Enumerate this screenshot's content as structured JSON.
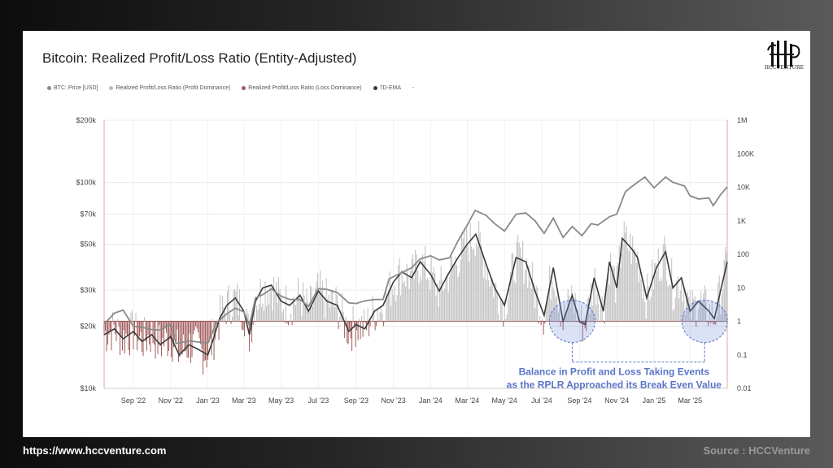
{
  "footer": {
    "url": "https://www.hccventure.com",
    "source": "Source : HCCVenture"
  },
  "brand": {
    "logo_text": "HCCVENTURE"
  },
  "colors": {
    "price": "#8a8a8a",
    "profit": "#bdbdbd",
    "loss": "#a05a5a",
    "ema": "#3a3a3a",
    "annotation": "#5a74c8"
  },
  "chart_data": {
    "type": "line",
    "title": "Bitcoin: Realized Profit/Loss Ratio (Entity-Adjusted)",
    "legend": [
      {
        "label": "BTC: Price [USD]",
        "color": "#8a8a8a"
      },
      {
        "label": "Realized Profit/Loss Ratio (Profit Dominance)",
        "color": "#bdbdbd"
      },
      {
        "label": "Realized Profit/Loss Ratio (Loss Dominance)",
        "color": "#a05a5a"
      },
      {
        "label": "7D-EMA",
        "color": "#3a3a3a"
      },
      {
        "label": "-",
        "color": ""
      }
    ],
    "left_axis": {
      "scale": "log",
      "range": [
        10000,
        200000
      ],
      "ticks": [
        {
          "v": 200000,
          "label": "$200k"
        },
        {
          "v": 100000,
          "label": "$100k"
        },
        {
          "v": 70000,
          "label": "$70k"
        },
        {
          "v": 50000,
          "label": "$50k"
        },
        {
          "v": 30000,
          "label": "$30k"
        },
        {
          "v": 20000,
          "label": "$20k"
        },
        {
          "v": 10000,
          "label": "$10k"
        }
      ]
    },
    "right_axis": {
      "scale": "log",
      "range": [
        0.01,
        1000000
      ],
      "ticks": [
        {
          "v": 1000000,
          "label": "1M"
        },
        {
          "v": 100000,
          "label": "100K"
        },
        {
          "v": 10000,
          "label": "10K"
        },
        {
          "v": 1000,
          "label": "1K"
        },
        {
          "v": 100,
          "label": "100"
        },
        {
          "v": 10,
          "label": "10"
        },
        {
          "v": 1,
          "label": "1"
        },
        {
          "v": 0.1,
          "label": "0.1"
        },
        {
          "v": 0.01,
          "label": "0.01"
        }
      ]
    },
    "x_axis": {
      "range": [
        "2022-07-15",
        "2025-05-01"
      ],
      "ticks": [
        {
          "date": "2022-09-01",
          "label": "Sep '22"
        },
        {
          "date": "2022-11-01",
          "label": "Nov '22"
        },
        {
          "date": "2023-01-01",
          "label": "Jan '23"
        },
        {
          "date": "2023-03-01",
          "label": "Mar '23"
        },
        {
          "date": "2023-05-01",
          "label": "May '23"
        },
        {
          "date": "2023-07-01",
          "label": "Jul '23"
        },
        {
          "date": "2023-09-01",
          "label": "Sep '23"
        },
        {
          "date": "2023-11-01",
          "label": "Nov '23"
        },
        {
          "date": "2024-01-01",
          "label": "Jan '24"
        },
        {
          "date": "2024-03-01",
          "label": "Mar '24"
        },
        {
          "date": "2024-05-01",
          "label": "May '24"
        },
        {
          "date": "2024-07-01",
          "label": "Jul '24"
        },
        {
          "date": "2024-09-01",
          "label": "Sep '24"
        },
        {
          "date": "2024-11-01",
          "label": "Nov '24"
        },
        {
          "date": "2025-01-01",
          "label": "Jan '25"
        },
        {
          "date": "2025-03-01",
          "label": "Mar '25"
        }
      ]
    },
    "break_even_value": 1,
    "grid": true,
    "series": [
      {
        "name": "BTC: Price [USD]",
        "axis": "left",
        "points": [
          [
            "2022-07-15",
            20500
          ],
          [
            "2022-08-01",
            23200
          ],
          [
            "2022-08-15",
            24000
          ],
          [
            "2022-09-01",
            20000
          ],
          [
            "2022-09-15",
            19800
          ],
          [
            "2022-10-01",
            19300
          ],
          [
            "2022-10-15",
            19200
          ],
          [
            "2022-11-01",
            20500
          ],
          [
            "2022-11-10",
            16500
          ],
          [
            "2022-12-01",
            17000
          ],
          [
            "2022-12-15",
            16800
          ],
          [
            "2023-01-01",
            16600
          ],
          [
            "2023-01-15",
            20800
          ],
          [
            "2023-02-01",
            23000
          ],
          [
            "2023-02-15",
            24500
          ],
          [
            "2023-03-01",
            23500
          ],
          [
            "2023-03-10",
            20200
          ],
          [
            "2023-03-20",
            27500
          ],
          [
            "2023-04-01",
            28500
          ],
          [
            "2023-04-15",
            30400
          ],
          [
            "2023-05-01",
            28000
          ],
          [
            "2023-05-15",
            27000
          ],
          [
            "2023-06-01",
            27000
          ],
          [
            "2023-06-15",
            25000
          ],
          [
            "2023-07-01",
            30500
          ],
          [
            "2023-07-15",
            30200
          ],
          [
            "2023-08-01",
            29200
          ],
          [
            "2023-08-20",
            26000
          ],
          [
            "2023-09-01",
            25800
          ],
          [
            "2023-09-15",
            26600
          ],
          [
            "2023-10-01",
            27000
          ],
          [
            "2023-10-15",
            27000
          ],
          [
            "2023-10-25",
            34000
          ],
          [
            "2023-11-15",
            36500
          ],
          [
            "2023-12-01",
            38500
          ],
          [
            "2023-12-15",
            42500
          ],
          [
            "2024-01-01",
            44000
          ],
          [
            "2024-01-15",
            42000
          ],
          [
            "2024-02-01",
            43000
          ],
          [
            "2024-02-15",
            52000
          ],
          [
            "2024-03-01",
            62000
          ],
          [
            "2024-03-14",
            73000
          ],
          [
            "2024-04-01",
            69000
          ],
          [
            "2024-04-15",
            63000
          ],
          [
            "2024-05-01",
            58000
          ],
          [
            "2024-05-20",
            70000
          ],
          [
            "2024-06-05",
            71000
          ],
          [
            "2024-06-20",
            65000
          ],
          [
            "2024-07-05",
            56500
          ],
          [
            "2024-07-20",
            67000
          ],
          [
            "2024-08-05",
            54000
          ],
          [
            "2024-08-20",
            61000
          ],
          [
            "2024-09-05",
            55000
          ],
          [
            "2024-09-20",
            63000
          ],
          [
            "2024-10-01",
            62000
          ],
          [
            "2024-10-20",
            68000
          ],
          [
            "2024-11-01",
            70000
          ],
          [
            "2024-11-15",
            90000
          ],
          [
            "2024-11-25",
            95000
          ],
          [
            "2024-12-05",
            100000
          ],
          [
            "2024-12-17",
            106000
          ],
          [
            "2025-01-01",
            94000
          ],
          [
            "2025-01-20",
            106000
          ],
          [
            "2025-02-01",
            100000
          ],
          [
            "2025-02-20",
            96000
          ],
          [
            "2025-03-01",
            86000
          ],
          [
            "2025-03-15",
            83000
          ],
          [
            "2025-04-01",
            84000
          ],
          [
            "2025-04-08",
            77000
          ],
          [
            "2025-04-20",
            87000
          ],
          [
            "2025-05-01",
            95000
          ]
        ]
      },
      {
        "name": "7D-EMA",
        "axis": "right",
        "points": [
          [
            "2022-07-15",
            0.4
          ],
          [
            "2022-08-01",
            0.6
          ],
          [
            "2022-08-15",
            0.3
          ],
          [
            "2022-09-01",
            0.5
          ],
          [
            "2022-09-15",
            0.25
          ],
          [
            "2022-10-01",
            0.4
          ],
          [
            "2022-10-15",
            0.2
          ],
          [
            "2022-11-01",
            0.35
          ],
          [
            "2022-11-15",
            0.1
          ],
          [
            "2022-12-01",
            0.2
          ],
          [
            "2022-12-15",
            0.15
          ],
          [
            "2023-01-01",
            0.1
          ],
          [
            "2023-01-10",
            0.3
          ],
          [
            "2023-01-20",
            1.2
          ],
          [
            "2023-02-01",
            3.0
          ],
          [
            "2023-02-15",
            5.0
          ],
          [
            "2023-03-01",
            2.0
          ],
          [
            "2023-03-10",
            0.4
          ],
          [
            "2023-03-20",
            4.0
          ],
          [
            "2023-04-01",
            10.0
          ],
          [
            "2023-04-15",
            12.0
          ],
          [
            "2023-05-01",
            4.0
          ],
          [
            "2023-05-15",
            3.0
          ],
          [
            "2023-06-01",
            6.0
          ],
          [
            "2023-06-15",
            2.0
          ],
          [
            "2023-07-01",
            8.0
          ],
          [
            "2023-07-15",
            4.0
          ],
          [
            "2023-08-01",
            3.0
          ],
          [
            "2023-08-20",
            0.5
          ],
          [
            "2023-09-01",
            0.8
          ],
          [
            "2023-09-15",
            0.6
          ],
          [
            "2023-10-01",
            2.0
          ],
          [
            "2023-10-15",
            3.0
          ],
          [
            "2023-11-01",
            15.0
          ],
          [
            "2023-11-15",
            30.0
          ],
          [
            "2023-12-01",
            20.0
          ],
          [
            "2023-12-15",
            60.0
          ],
          [
            "2024-01-01",
            25.0
          ],
          [
            "2024-01-15",
            8.0
          ],
          [
            "2024-02-01",
            30.0
          ],
          [
            "2024-02-15",
            80.0
          ],
          [
            "2024-03-01",
            200.0
          ],
          [
            "2024-03-15",
            400.0
          ],
          [
            "2024-04-01",
            50.0
          ],
          [
            "2024-04-15",
            10.0
          ],
          [
            "2024-05-01",
            3.0
          ],
          [
            "2024-05-20",
            80.0
          ],
          [
            "2024-06-05",
            60.0
          ],
          [
            "2024-06-20",
            8.0
          ],
          [
            "2024-07-05",
            1.5
          ],
          [
            "2024-07-20",
            40.0
          ],
          [
            "2024-08-05",
            1.0
          ],
          [
            "2024-08-20",
            6.0
          ],
          [
            "2024-09-01",
            1.0
          ],
          [
            "2024-09-10",
            0.8
          ],
          [
            "2024-09-25",
            20.0
          ],
          [
            "2024-10-10",
            2.0
          ],
          [
            "2024-10-20",
            60.0
          ],
          [
            "2024-11-01",
            10.0
          ],
          [
            "2024-11-10",
            300.0
          ],
          [
            "2024-11-25",
            150.0
          ],
          [
            "2024-12-05",
            80.0
          ],
          [
            "2024-12-20",
            5.0
          ],
          [
            "2025-01-05",
            40.0
          ],
          [
            "2025-01-20",
            120.0
          ],
          [
            "2025-02-01",
            10.0
          ],
          [
            "2025-02-15",
            20.0
          ],
          [
            "2025-03-01",
            2.0
          ],
          [
            "2025-03-15",
            4.0
          ],
          [
            "2025-04-01",
            2.0
          ],
          [
            "2025-04-10",
            1.2
          ],
          [
            "2025-04-20",
            8.0
          ],
          [
            "2025-05-01",
            60.0
          ]
        ]
      }
    ],
    "annotation": {
      "text_lines": [
        "Balance in Profit and Loss Taking Events",
        "as the RPLR Approached its Break Even Value"
      ],
      "highlights": [
        {
          "center_date": "2024-08-20",
          "center_value": 1
        },
        {
          "center_date": "2025-03-25",
          "center_value": 1
        }
      ]
    }
  }
}
